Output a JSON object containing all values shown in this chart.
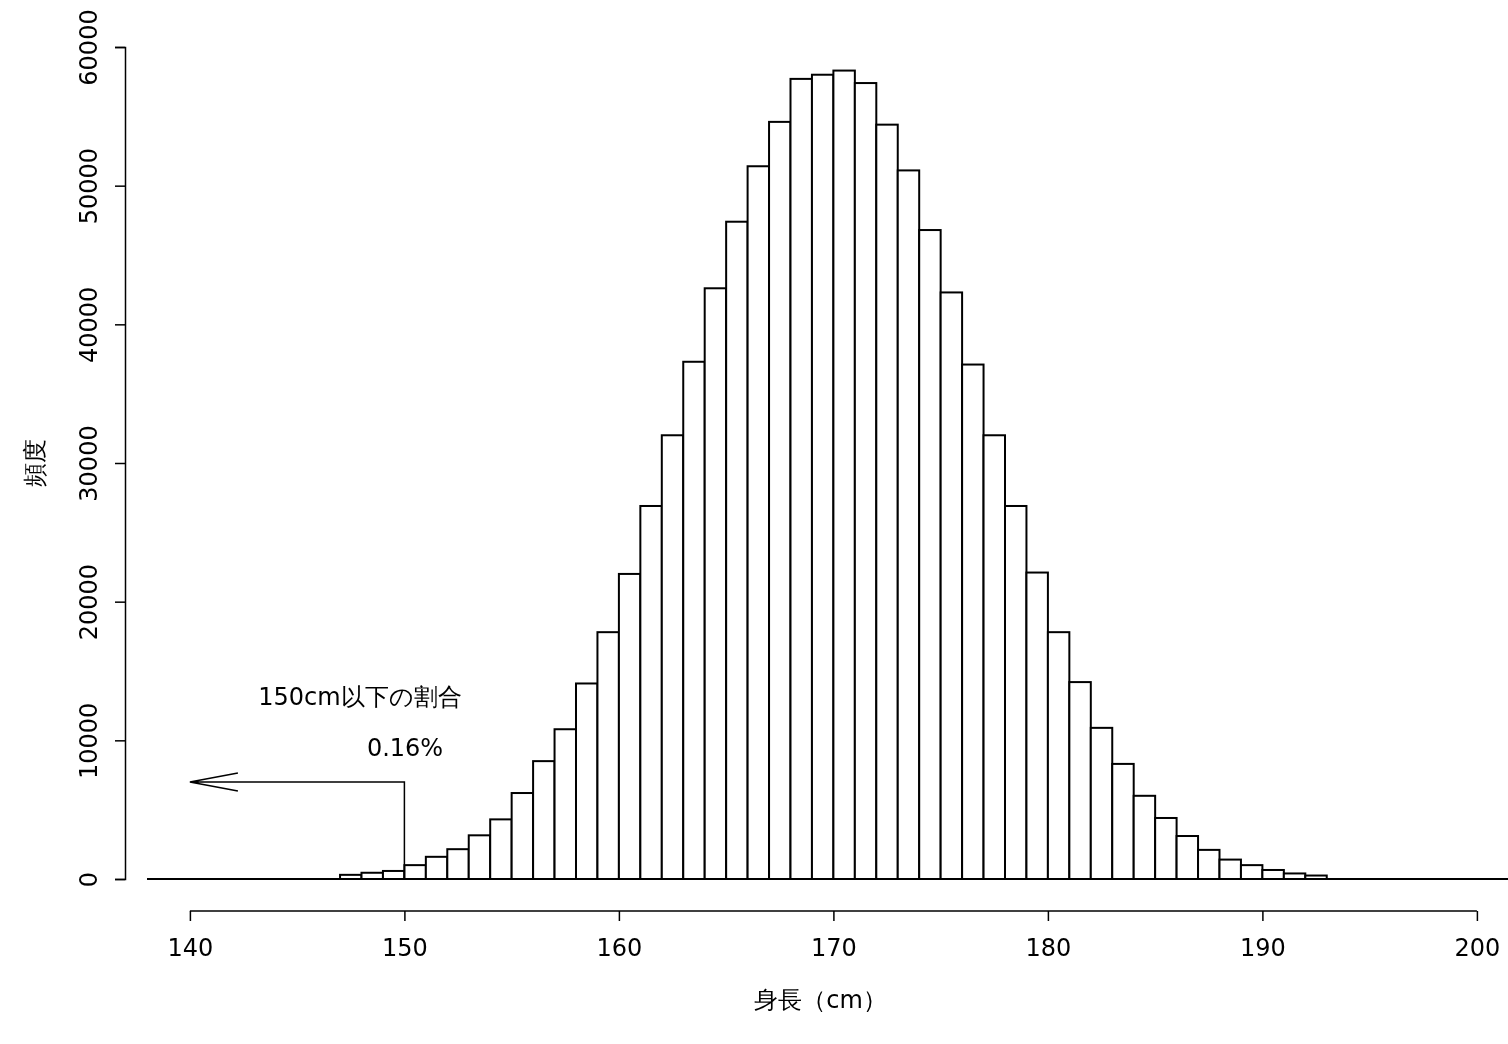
{
  "chart_data": {
    "type": "histogram",
    "xlabel": "身長（cm）",
    "ylabel": "頻度",
    "bins": [
      138,
      139,
      140,
      141,
      142,
      143,
      144,
      145,
      146,
      147,
      148,
      149,
      150,
      151,
      152,
      153,
      154,
      155,
      156,
      157,
      158,
      159,
      160,
      161,
      162,
      163,
      164,
      165,
      166,
      167,
      168,
      169,
      170,
      171,
      172,
      173,
      174,
      175,
      176,
      177,
      178,
      179,
      180,
      181,
      182,
      183,
      184,
      185,
      186,
      187,
      188,
      189,
      190,
      191,
      192,
      193,
      194,
      195,
      196,
      197,
      198,
      199,
      200,
      201
    ],
    "values": [
      0,
      0,
      0,
      0,
      0,
      0,
      0,
      0,
      0,
      300,
      450,
      580,
      1000,
      1600,
      2150,
      3150,
      4300,
      6200,
      8500,
      10800,
      14100,
      17800,
      22000,
      26900,
      32000,
      37300,
      42600,
      47400,
      51400,
      54600,
      57700,
      58000,
      58300,
      57400,
      54400,
      51100,
      46800,
      42300,
      37100,
      32000,
      26900,
      22100,
      17800,
      14200,
      10900,
      8300,
      6000,
      4400,
      3100,
      2100,
      1400,
      1000,
      650,
      400,
      250,
      0,
      0,
      0,
      0,
      0,
      0,
      0,
      0
    ],
    "color": "#ffffff",
    "xlim": [
      138,
      201.45
    ],
    "ylim": [
      0,
      60000
    ],
    "xticks": [
      140,
      150,
      160,
      170,
      180,
      190,
      200
    ],
    "yticks": [
      0,
      10000,
      20000,
      30000,
      40000,
      50000,
      60000
    ],
    "grid": false,
    "annotations": [
      "150cm以下の割合",
      "0.16%"
    ]
  }
}
